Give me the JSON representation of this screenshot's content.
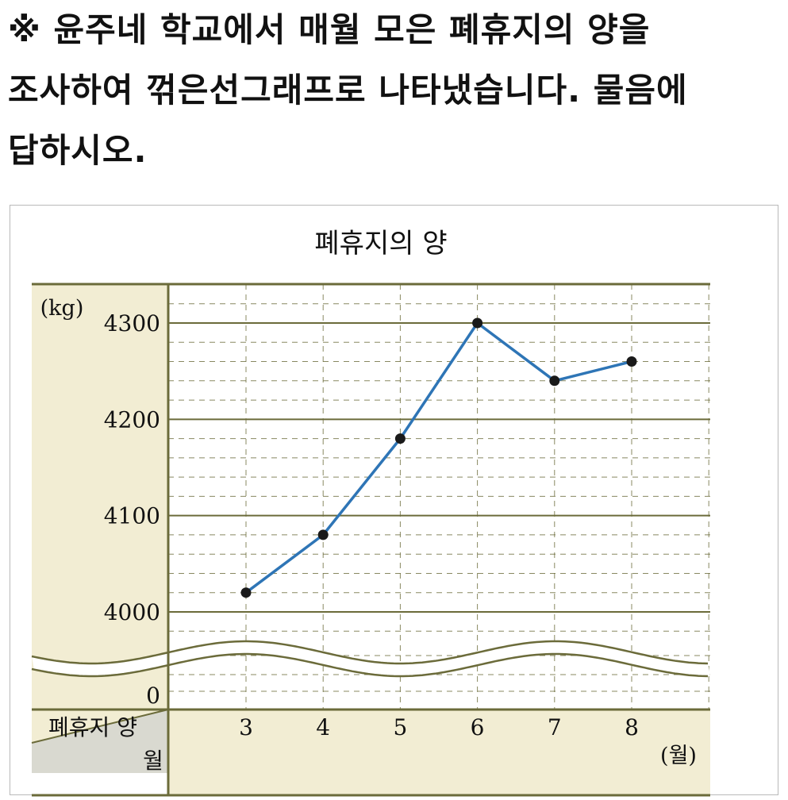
{
  "question": {
    "line1": "※ 윤주네 학교에서 매월 모은 폐휴지의 양을",
    "line2": "조사하여 꺾은선그래프로 나타냈습니다. 물음에",
    "line3": "답하시오."
  },
  "chart_data": {
    "type": "line",
    "title": "폐휴지의 양",
    "y_unit": "(kg)",
    "x_unit": "(월)",
    "corner_top": "폐휴지 양",
    "corner_bottom": "월",
    "categories": [
      "3",
      "4",
      "5",
      "6",
      "7",
      "8"
    ],
    "y_ticks": [
      "4300",
      "4200",
      "4100",
      "4000",
      "0"
    ],
    "ylim": [
      4000,
      4300
    ],
    "y_axis_break": true,
    "grid": true,
    "series": [
      {
        "values": [
          4020,
          4080,
          4180,
          4300,
          4240,
          4260
        ]
      }
    ],
    "colors": {
      "line": "#2e75b6",
      "panel": "#f2edd3",
      "corner": "#d9d9d0",
      "border": "#6b6b3a",
      "grid": "#6b6b3a"
    }
  }
}
